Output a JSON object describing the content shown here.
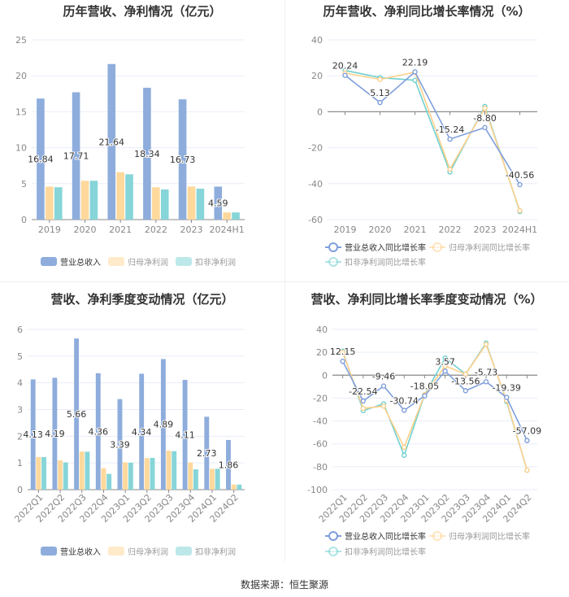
{
  "colors": {
    "revenue": "#8eaddc",
    "net": "#ffd99c",
    "deducted": "#86d5d8",
    "revenue_line": "#7f9fdb",
    "net_line": "#ffd08a",
    "deducted_line": "#6fd0cf"
  },
  "footer": "数据来源：恒生聚源",
  "chart_data": [
    {
      "type": "bar",
      "title": "历年营收、净利情况（亿元）",
      "categories": [
        "2019",
        "2020",
        "2021",
        "2022",
        "2023",
        "2024H1"
      ],
      "ylim": [
        0,
        25
      ],
      "yticks": [
        0,
        5,
        10,
        15,
        20,
        25
      ],
      "grid": true,
      "legend": "bottom",
      "series": [
        {
          "name": "营业总收入",
          "values": [
            16.84,
            17.71,
            21.64,
            18.34,
            16.73,
            4.59
          ],
          "labels": [
            "16.84",
            "17.71",
            "21.64",
            "18.34",
            "16.73",
            "4.59"
          ]
        },
        {
          "name": "归母净利润",
          "values": [
            4.6,
            5.4,
            6.6,
            4.5,
            4.6,
            1.0
          ]
        },
        {
          "name": "扣非净利润",
          "values": [
            4.5,
            5.4,
            6.3,
            4.2,
            4.3,
            1.0
          ]
        }
      ]
    },
    {
      "type": "line",
      "title": "历年营收、净利同比增长率情况（%）",
      "categories": [
        "2019",
        "2020",
        "2021",
        "2022",
        "2023",
        "2024H1"
      ],
      "ylim": [
        -60,
        40
      ],
      "yticks": [
        -60,
        -40,
        -20,
        0,
        20,
        40
      ],
      "grid": true,
      "legend": "bottom",
      "series": [
        {
          "name": "营业总收入同比增长率",
          "values": [
            20.24,
            5.13,
            22.19,
            -15.24,
            -8.8,
            -40.56
          ],
          "labels": [
            "20.24",
            "5.13",
            "22.19",
            "-15.24",
            "-8.80",
            "-40.56"
          ]
        },
        {
          "name": "归母净利润同比增长率",
          "values": [
            21.5,
            18,
            22,
            -32,
            2,
            -55
          ]
        },
        {
          "name": "扣非净利润同比增长率",
          "values": [
            23,
            19,
            17.5,
            -33.5,
            3,
            -55.5
          ]
        }
      ]
    },
    {
      "type": "bar",
      "title": "营收、净利季度变动情况（亿元）",
      "categories": [
        "2022Q1",
        "2022Q2",
        "2022Q3",
        "2022Q4",
        "2023Q1",
        "2023Q2",
        "2023Q3",
        "2023Q4",
        "2024Q1",
        "2024Q2"
      ],
      "ylim": [
        0,
        6
      ],
      "yticks": [
        0,
        1,
        2,
        3,
        4,
        5,
        6
      ],
      "grid": true,
      "legend": "bottom",
      "series": [
        {
          "name": "营业总收入",
          "values": [
            4.13,
            4.19,
            5.66,
            4.36,
            3.39,
            4.34,
            4.89,
            4.11,
            2.73,
            1.86
          ],
          "labels": [
            "4.13",
            "4.19",
            "5.66",
            "4.36",
            "3.39",
            "4.34",
            "4.89",
            "4.11",
            "2.73",
            "1.86"
          ]
        },
        {
          "name": "归母净利润",
          "values": [
            1.22,
            1.1,
            1.43,
            0.8,
            1.02,
            1.18,
            1.46,
            1.02,
            0.78,
            0.19
          ]
        },
        {
          "name": "扣非净利润",
          "values": [
            1.22,
            1.02,
            1.42,
            0.59,
            1.01,
            1.19,
            1.44,
            0.76,
            0.78,
            0.19
          ]
        }
      ]
    },
    {
      "type": "line",
      "title": "营收、净利同比增长率季度变动情况（%）",
      "categories": [
        "2022Q1",
        "2022Q2",
        "2022Q3",
        "2022Q4",
        "2023Q1",
        "2023Q2",
        "2023Q3",
        "2023Q4",
        "2024Q1",
        "2024Q2"
      ],
      "ylim": [
        -100,
        40
      ],
      "yticks": [
        -100,
        -80,
        -60,
        -40,
        -20,
        0,
        20,
        40
      ],
      "grid": true,
      "legend": "bottom",
      "series": [
        {
          "name": "营业总收入同比增长率",
          "values": [
            12.15,
            -22.54,
            -9.46,
            -30.74,
            -18.05,
            3.57,
            -13.56,
            -5.73,
            -19.39,
            -57.09
          ],
          "labels": [
            "12.15",
            "-22.54",
            "-9.46",
            "-30.74",
            "-18.05",
            "3.57",
            "-13.56",
            "-5.73",
            "-19.39",
            "-57.09"
          ]
        },
        {
          "name": "归母净利润同比增长率",
          "values": [
            20,
            -29,
            -27,
            -63,
            -17,
            8,
            1,
            27,
            -22,
            -83
          ]
        },
        {
          "name": "扣非净利润同比增长率",
          "values": [
            21,
            -31,
            -25,
            -70,
            -17,
            15,
            1,
            28,
            -23,
            -83
          ]
        }
      ]
    }
  ]
}
